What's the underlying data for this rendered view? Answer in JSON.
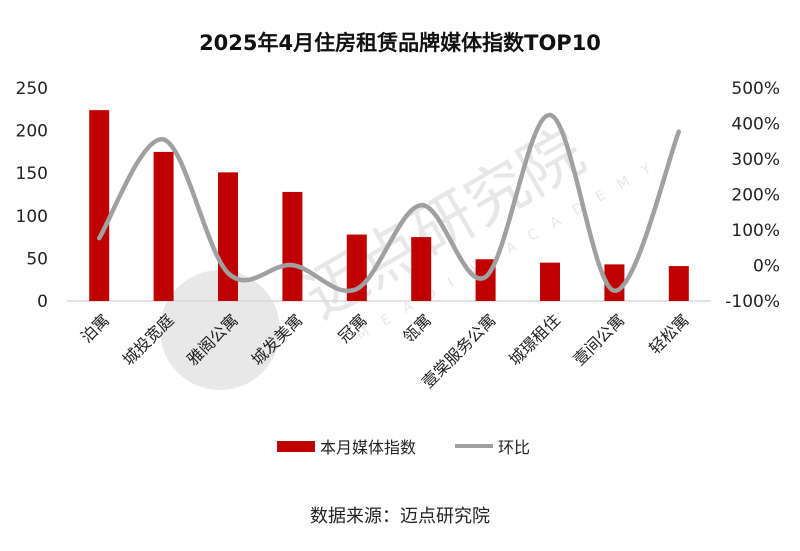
{
  "chart_data": {
    "type": "bar+line",
    "title": "2025年4月住房租赁品牌媒体指数TOP10",
    "categories": [
      "泊寓",
      "城投宽庭",
      "雅阁公寓",
      "城发美寓",
      "冠寓",
      "瓴寓",
      "壹棠服务公寓",
      "城璟租住",
      "壹间公寓",
      "轻松寓"
    ],
    "series": [
      {
        "name": "本月媒体指数",
        "type": "bar",
        "axis": "left",
        "color": "#C00000",
        "values": [
          224,
          175,
          151,
          128,
          78,
          75,
          49,
          45,
          43,
          41
        ]
      },
      {
        "name": "环比",
        "type": "line",
        "axis": "right",
        "color": "#A0A0A0",
        "values": [
          77,
          355,
          -21,
          1,
          -66,
          170,
          -32,
          424,
          -71,
          377
        ]
      }
    ],
    "y_left": {
      "range": [
        0,
        250
      ],
      "ticks": [
        "0",
        "50",
        "100",
        "150",
        "200",
        "250"
      ]
    },
    "y_right": {
      "range": [
        -100,
        500
      ],
      "ticks": [
        "-100%",
        "0%",
        "100%",
        "200%",
        "300%",
        "400%",
        "500%"
      ]
    },
    "legend_position": "bottom",
    "grid": false,
    "source": "数据来源：迈点研究院",
    "watermark": {
      "cn": "迈点研究院",
      "en": "MEADIN ACADEMY"
    }
  }
}
